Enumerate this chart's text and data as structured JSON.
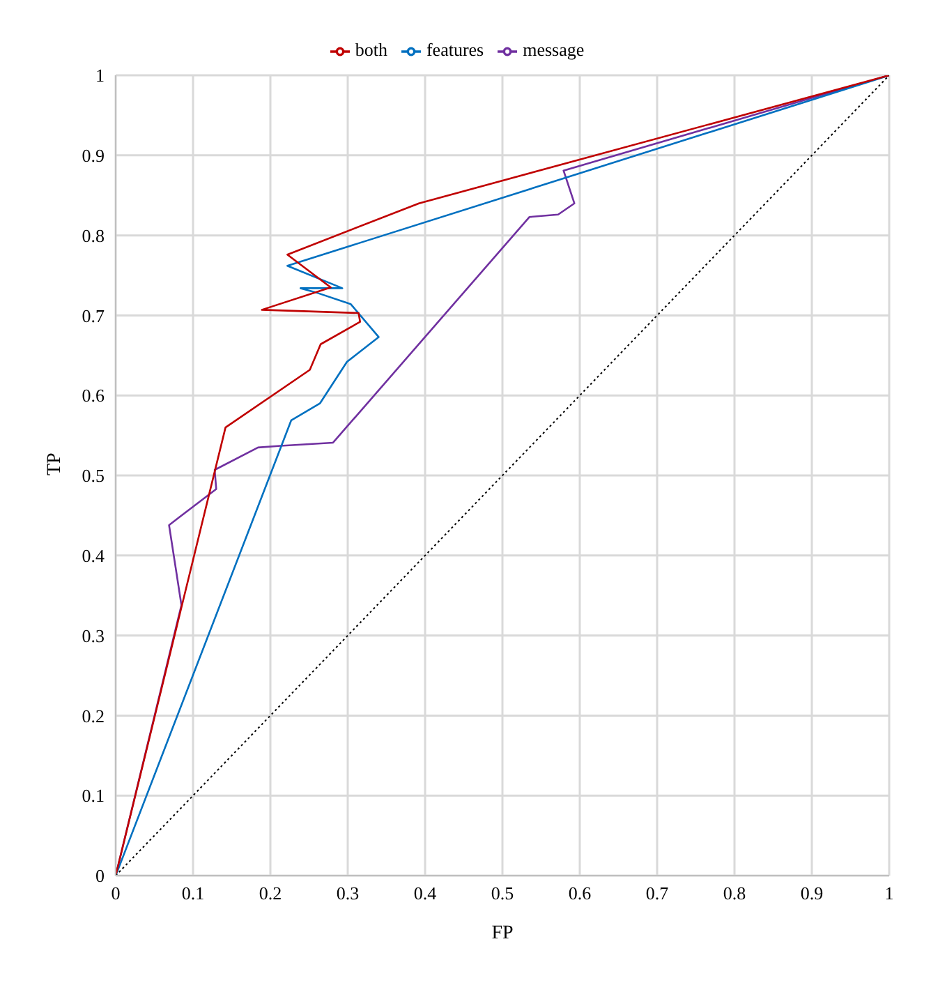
{
  "chart_data": {
    "type": "line",
    "xlabel": "FP",
    "ylabel": "TP",
    "xlim": [
      0,
      1
    ],
    "ylim": [
      0,
      1
    ],
    "xticks": [
      0,
      0.1,
      0.2,
      0.3,
      0.4,
      0.5,
      0.6,
      0.7,
      0.8,
      0.9,
      1
    ],
    "yticks": [
      0,
      0.1,
      0.2,
      0.3,
      0.4,
      0.5,
      0.6,
      0.7,
      0.8,
      0.9,
      1
    ],
    "grid": true,
    "legend": "top",
    "marker": "none",
    "series": [
      {
        "name": "message",
        "color": "#7030a0",
        "x": [
          0,
          0.085,
          0.069,
          0.13,
          0.128,
          0.184,
          0.213,
          0.281,
          0.535,
          0.572,
          0.593,
          0.579,
          1
        ],
        "values": [
          0,
          0.338,
          0.438,
          0.483,
          0.507,
          0.535,
          0.537,
          0.541,
          0.823,
          0.826,
          0.84,
          0.881,
          1
        ]
      },
      {
        "name": "features",
        "color": "#0070c0",
        "x": [
          0,
          0.227,
          0.264,
          0.299,
          0.34,
          0.304,
          0.258,
          0.239,
          0.293,
          0.222,
          1
        ],
        "values": [
          0,
          0.569,
          0.59,
          0.642,
          0.673,
          0.714,
          0.729,
          0.734,
          0.734,
          0.762,
          1
        ]
      },
      {
        "name": "both",
        "color": "#c00000",
        "x": [
          0,
          0.142,
          0.251,
          0.265,
          0.316,
          0.314,
          0.189,
          0.278,
          0.222,
          0.392,
          1
        ],
        "values": [
          0,
          0.56,
          0.632,
          0.664,
          0.692,
          0.703,
          0.707,
          0.735,
          0.776,
          0.84,
          1
        ]
      },
      {
        "color": "#000000",
        "line_style": "dotted",
        "x": [
          0,
          1
        ],
        "values": [
          0,
          1
        ]
      }
    ]
  }
}
